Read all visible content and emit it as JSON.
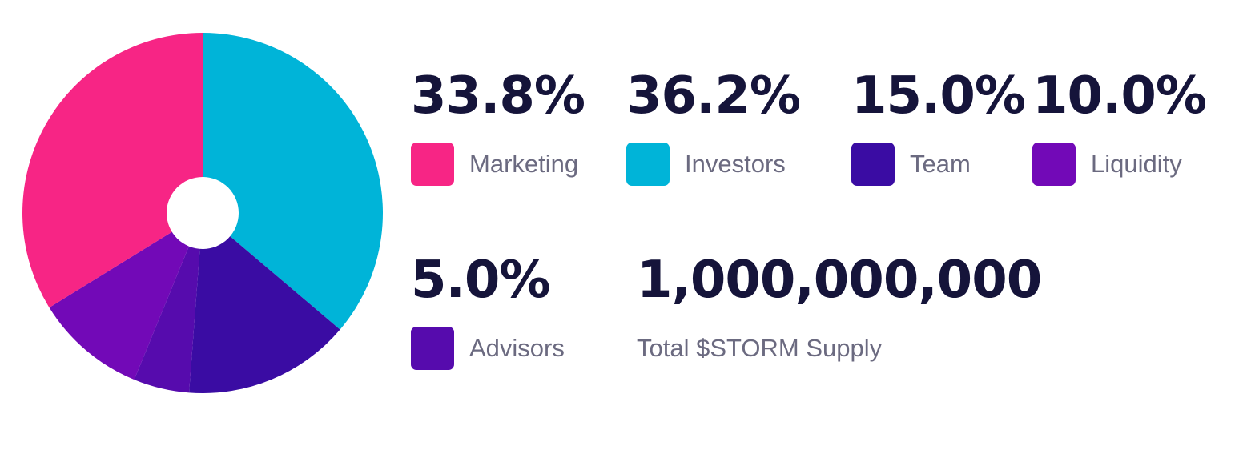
{
  "chart_data": {
    "type": "pie",
    "categories": [
      "Marketing",
      "Investors",
      "Team",
      "Liquidity",
      "Advisors"
    ],
    "values": [
      33.8,
      36.2,
      15.0,
      10.0,
      5.0
    ],
    "value_labels": [
      "33.8%",
      "36.2%",
      "15.0%",
      "10.0%",
      "5.0%"
    ],
    "colors": [
      "#f72585",
      "#00b4d8",
      "#3a0ca3",
      "#7209b7",
      "#560bad"
    ],
    "donut_hole_color": "#ffffff",
    "legend_placement": "right"
  },
  "legend": [
    {
      "value": "33.8%",
      "label": "Marketing",
      "color": "#f72585"
    },
    {
      "value": "36.2%",
      "label": "Investors",
      "color": "#00b4d8"
    },
    {
      "value": "15.0%",
      "label": "Team",
      "color": "#3a0ca3"
    },
    {
      "value": "10.0%",
      "label": "Liquidity",
      "color": "#7209b7"
    },
    {
      "value": "5.0%",
      "label": "Advisors",
      "color": "#560bad"
    }
  ],
  "supply": {
    "value": "1,000,000,000",
    "label": "Total $STORM Supply"
  }
}
